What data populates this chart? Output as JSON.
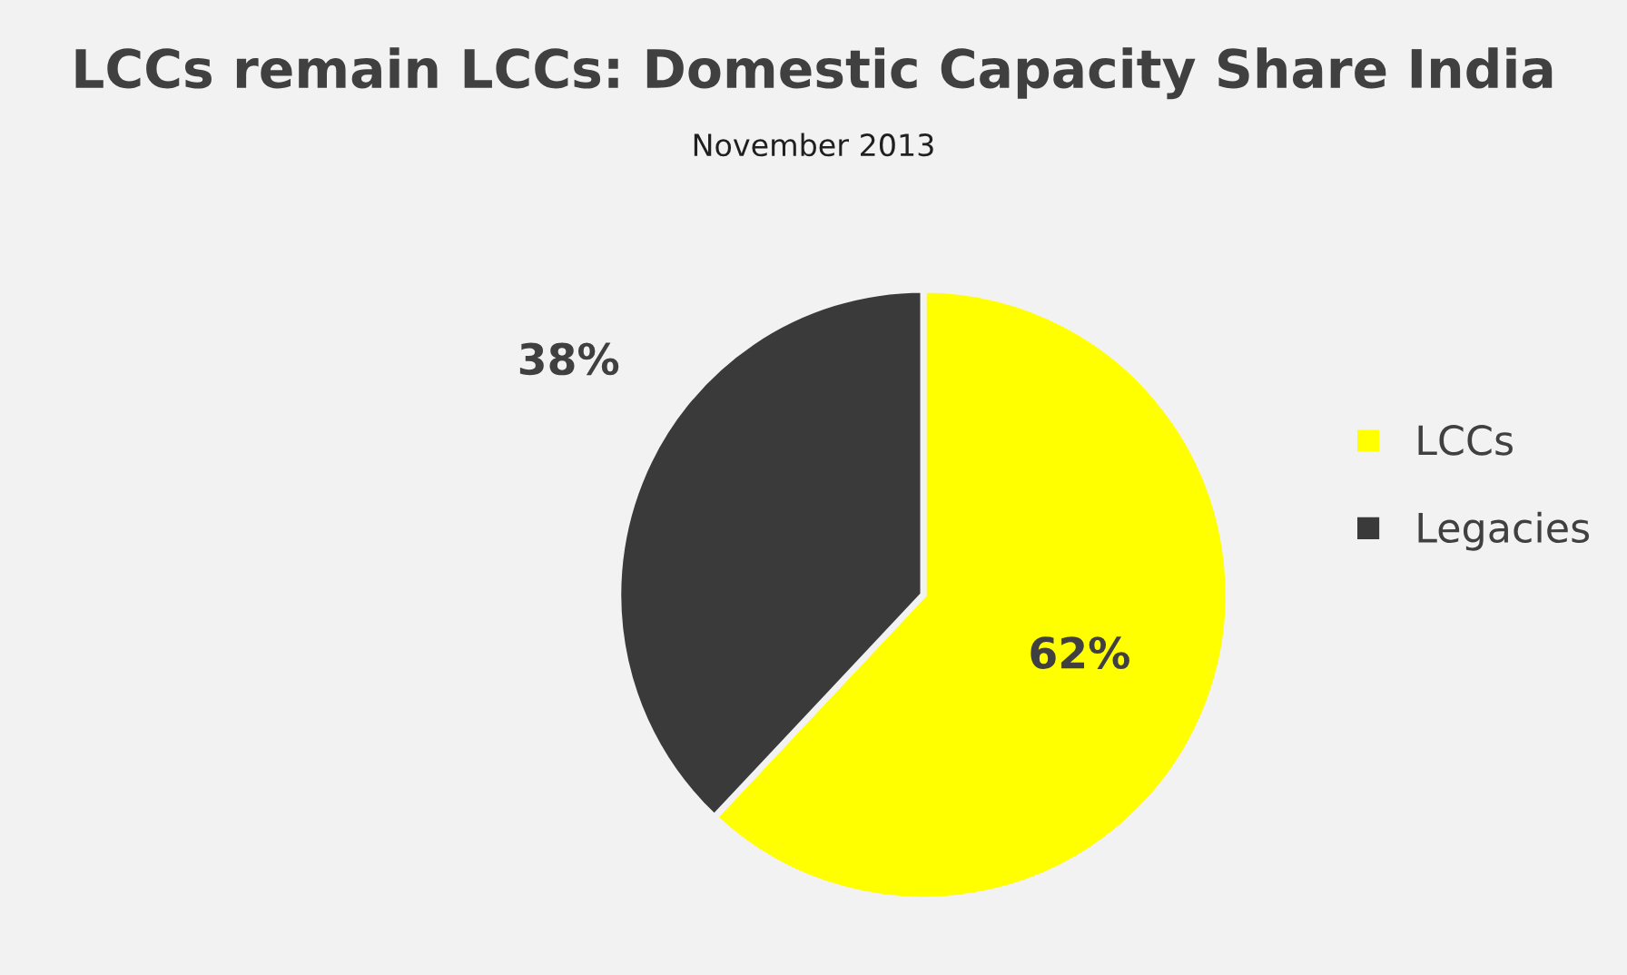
{
  "chart_data": {
    "type": "pie",
    "title": "LCCs remain LCCs: Domestic Capacity Share India",
    "subtitle": "November 2013",
    "categories": [
      "LCCs",
      "Legacies"
    ],
    "values": [
      62,
      38
    ],
    "colors": [
      "#ffff00",
      "#3a3a3a"
    ],
    "value_labels": [
      "62%",
      "38%"
    ],
    "legend": "right"
  }
}
